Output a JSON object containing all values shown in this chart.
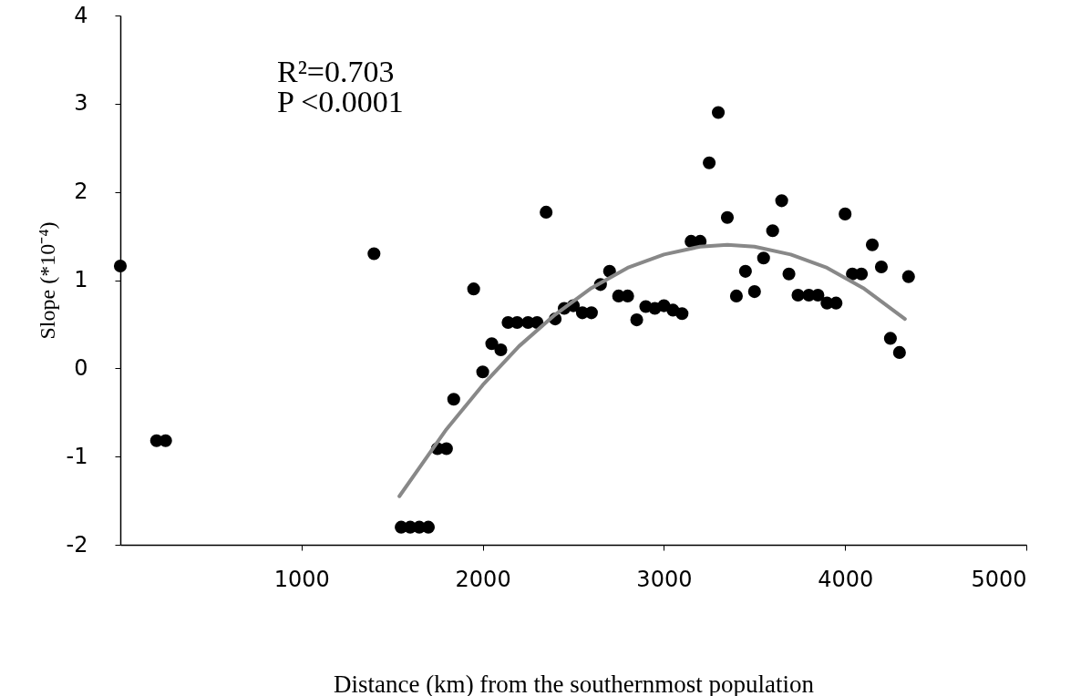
{
  "chart_data": {
    "type": "scatter",
    "xlabel": "Distance (km) from the southernmost population",
    "ylabel": "Slope (*10⁻⁴)",
    "annotations": [
      "R²=0.703",
      "P  <0.0001"
    ],
    "xlim": [
      0,
      5000
    ],
    "xticks": [
      1000,
      2000,
      3000,
      4000,
      5000
    ],
    "ylim": [
      -2,
      4
    ],
    "yticks": [
      -2,
      -1,
      0,
      1,
      2,
      3,
      4
    ],
    "grid": false,
    "series": [
      {
        "marker": "circle",
        "color": "#000000",
        "x": [
          0,
          200,
          250,
          1400,
          1550,
          1600,
          1650,
          1700,
          1750,
          1800,
          1840,
          1950,
          2000,
          2050,
          2100,
          2140,
          2190,
          2250,
          2300,
          2350,
          2400,
          2450,
          2500,
          2550,
          2600,
          2650,
          2700,
          2750,
          2800,
          2850,
          2900,
          2950,
          3000,
          3050,
          3100,
          3150,
          3200,
          3250,
          3300,
          3350,
          3400,
          3450,
          3500,
          3550,
          3600,
          3650,
          3690,
          3740,
          3800,
          3850,
          3900,
          3950,
          4000,
          4040,
          4090,
          4150,
          4200,
          4250,
          4300,
          4350
        ],
        "values": [
          1.16,
          -0.82,
          -0.82,
          1.3,
          -1.8,
          -1.8,
          -1.8,
          -1.8,
          -0.91,
          -0.91,
          -0.35,
          0.9,
          -0.04,
          0.28,
          0.21,
          0.52,
          0.52,
          0.52,
          0.52,
          1.77,
          0.56,
          0.68,
          0.71,
          0.63,
          0.63,
          0.95,
          1.1,
          0.82,
          0.82,
          0.55,
          0.7,
          0.68,
          0.71,
          0.66,
          0.62,
          1.44,
          1.44,
          2.33,
          2.9,
          1.71,
          0.82,
          1.1,
          0.87,
          1.25,
          1.56,
          1.9,
          1.07,
          0.83,
          0.83,
          0.83,
          0.74,
          0.74,
          1.75,
          1.07,
          1.07,
          1.4,
          1.15,
          0.34,
          0.18,
          1.04
        ]
      },
      {
        "type": "line",
        "color": "#888888",
        "x": [
          1540,
          1800,
          2000,
          2200,
          2400,
          2600,
          2800,
          3000,
          3200,
          3350,
          3500,
          3700,
          3900,
          4100,
          4330
        ],
        "values": [
          -1.45,
          -0.69,
          -0.19,
          0.25,
          0.61,
          0.91,
          1.14,
          1.29,
          1.38,
          1.4,
          1.38,
          1.29,
          1.14,
          0.91,
          0.56
        ]
      }
    ]
  }
}
